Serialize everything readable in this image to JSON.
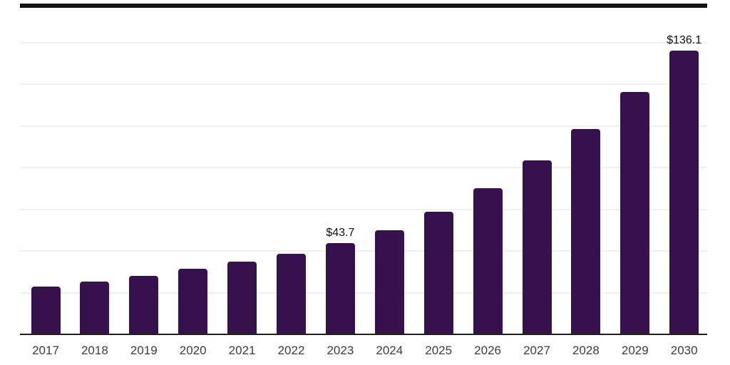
{
  "chart_data": {
    "type": "bar",
    "title": "",
    "xlabel": "",
    "ylabel": "",
    "categories": [
      "2017",
      "2018",
      "2019",
      "2020",
      "2021",
      "2022",
      "2023",
      "2024",
      "2025",
      "2026",
      "2027",
      "2028",
      "2029",
      "2030"
    ],
    "values": [
      22.9,
      25.4,
      28.0,
      31.3,
      34.9,
      38.8,
      43.7,
      50.0,
      58.7,
      70.2,
      83.4,
      98.6,
      116.3,
      136.1
    ],
    "data_labels": {
      "2023": "$43.7",
      "2030": "$136.1"
    },
    "ylim": [
      0,
      160
    ],
    "gridline_interval": 20,
    "grid": true,
    "legend": false,
    "colors": {
      "bar": "#36114D",
      "grid": "#f0f0f2",
      "axis_line": "#1f1f1f",
      "top_border": "#141414",
      "data_label": "#111111",
      "tick_label": "#3d3d3d",
      "background": "#ffffff"
    }
  }
}
